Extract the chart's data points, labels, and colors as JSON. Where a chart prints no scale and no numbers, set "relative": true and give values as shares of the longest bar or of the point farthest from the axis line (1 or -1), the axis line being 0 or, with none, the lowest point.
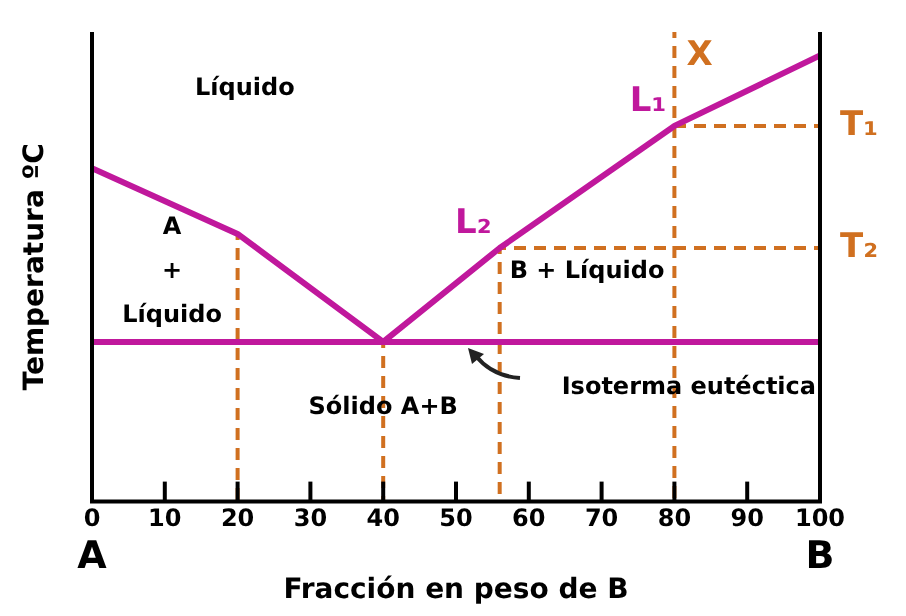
{
  "chart_data": {
    "type": "line",
    "relative": true,
    "xlabel": "Fracción en peso de B",
    "ylabel": "Temperatura ºC",
    "xlim": [
      0,
      100
    ],
    "xticks": [
      0,
      10,
      20,
      30,
      40,
      50,
      60,
      70,
      80,
      90,
      100
    ],
    "legend": false,
    "grid": false,
    "marker": "none",
    "series": [
      {
        "color": "#c0189c",
        "line_style": "solid",
        "x": [
          0,
          20,
          40
        ],
        "values": [
          0.71,
          0.57,
          0.34
        ]
      },
      {
        "color": "#c0189c",
        "line_style": "solid",
        "x": [
          40,
          56,
          80,
          100
        ],
        "values": [
          0.34,
          0.54,
          0.8,
          0.95
        ]
      },
      {
        "color": "#d07020",
        "line_style": "dashed",
        "x": [
          20,
          20
        ],
        "values": [
          0,
          0.57
        ]
      },
      {
        "color": "#d07020",
        "line_style": "dashed",
        "x": [
          40,
          40
        ],
        "values": [
          0,
          0.34
        ]
      },
      {
        "color": "#d07020",
        "line_style": "dashed",
        "x": [
          56,
          56
        ],
        "values": [
          0,
          0.54
        ]
      },
      {
        "color": "#d07020",
        "line_style": "dashed",
        "x": [
          80,
          80
        ],
        "values": [
          0,
          1
        ]
      },
      {
        "color": "#d07020",
        "line_style": "dashed",
        "x": [
          56,
          100
        ],
        "values": [
          0.54,
          0.54
        ]
      },
      {
        "color": "#d07020",
        "line_style": "dashed",
        "x": [
          80,
          100
        ],
        "values": [
          0.8,
          0.8
        ]
      }
    ],
    "ref_lines": [
      {
        "axis": "y",
        "value": 0.34,
        "color": "#c0189c",
        "label": "Isoterma eutéctica"
      }
    ],
    "annotations": [
      "Líquido",
      "A\n+\nLíquido",
      "B + Líquido",
      "Sólido A+B",
      "A",
      "B",
      {
        "text": "L₁",
        "x": 80,
        "y": 0.8
      },
      {
        "text": "L₂",
        "x": 56,
        "y": 0.54
      },
      {
        "text": "T₁",
        "x": 100,
        "y": 0.8
      },
      {
        "text": "T₂",
        "x": 100,
        "y": 0.54
      },
      {
        "text": "X",
        "x": 80,
        "y": 1
      }
    ]
  }
}
